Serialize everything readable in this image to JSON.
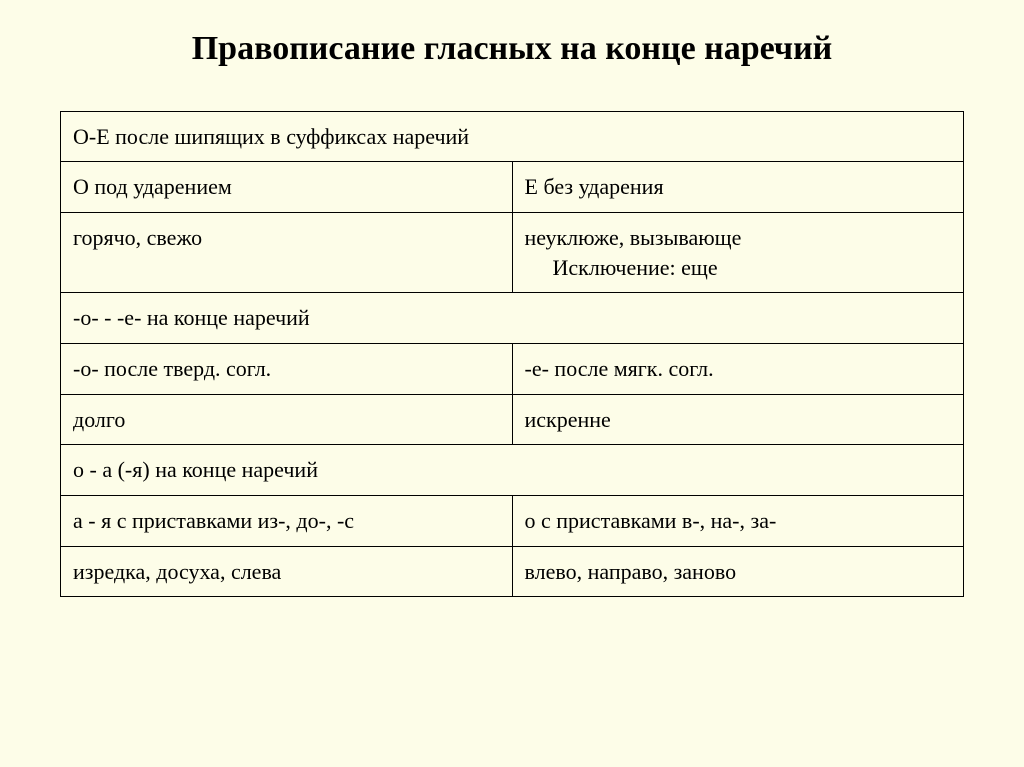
{
  "title": "Правописание гласных на конце наречий",
  "table": {
    "border_color": "#000000",
    "background_color": "#fdfde8",
    "text_color": "#000000",
    "font_family": "Times New Roman",
    "title_fontsize": 34,
    "cell_fontsize": 22,
    "rows": [
      {
        "type": "full",
        "text": "О-Е после шипящих в суффиксах наречий"
      },
      {
        "type": "split",
        "left": "О под ударением",
        "right": "Е без ударения"
      },
      {
        "type": "split",
        "left": "горячо, свежо",
        "right": "неуклюже, вызывающе",
        "right_extra": "Исключение: еще"
      },
      {
        "type": "full",
        "text": "-о- - -е- на конце наречий"
      },
      {
        "type": "split",
        "left": "-о- после тверд. согл.",
        "right": "-е- после мягк. согл."
      },
      {
        "type": "split",
        "left": "долго",
        "right": "искренне"
      },
      {
        "type": "full",
        "text": "о - а (-я) на конце наречий"
      },
      {
        "type": "split",
        "left": "а - я с приставками из-, до-, -с",
        "right": "о с приставками в-, на-, за-"
      },
      {
        "type": "split",
        "left": "изредка, досуха, слева",
        "right": "влево, направо, заново"
      }
    ]
  }
}
